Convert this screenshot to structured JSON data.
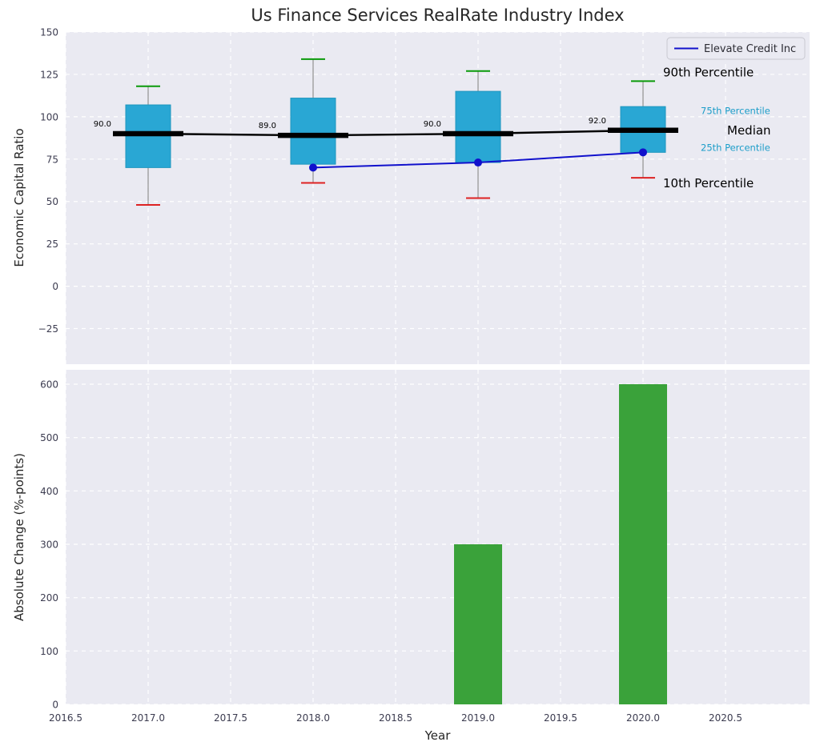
{
  "figure": {
    "title": "Us Finance Services RealRate Industry Index",
    "xlabel": "Year",
    "top_ylabel": "Economic Capital Ratio",
    "bottom_ylabel": "Absolute Change (%-points)"
  },
  "chart_data": [
    {
      "type": "boxplot",
      "title": "Us Finance Services RealRate Industry Index",
      "ylabel": "Economic Capital Ratio",
      "ylim": [
        -46,
        150
      ],
      "grid": true,
      "legend": {
        "label": "Elevate Credit Inc",
        "position": "upper right"
      },
      "yticks": [
        {
          "value": 150,
          "label": "150"
        },
        {
          "value": 125,
          "label": "125"
        },
        {
          "value": 100,
          "label": "100"
        },
        {
          "value": 75,
          "label": "75"
        },
        {
          "value": 50,
          "label": "50"
        },
        {
          "value": 25,
          "label": "25"
        },
        {
          "value": 0,
          "label": "0"
        },
        {
          "value": -25,
          "label": "−25"
        }
      ],
      "boxes": [
        {
          "x": 2017,
          "whisker_low": 48,
          "q1": 70,
          "median": 90.0,
          "q3": 107,
          "whisker_high": 118
        },
        {
          "x": 2018,
          "whisker_low": 61,
          "q1": 72,
          "median": 89.0,
          "q3": 111,
          "whisker_high": 134
        },
        {
          "x": 2019,
          "whisker_low": 52,
          "q1": 73,
          "median": 90.0,
          "q3": 115,
          "whisker_high": 127
        },
        {
          "x": 2020,
          "whisker_low": 64,
          "q1": 79,
          "median": 92.0,
          "q3": 106,
          "whisker_high": 121
        }
      ],
      "median_labels": [
        "90.0",
        "89.0",
        "90.0",
        "92.0"
      ],
      "series": [
        {
          "name": "Elevate Credit Inc",
          "x": [
            2018,
            2019,
            2020
          ],
          "y": [
            70,
            73,
            79
          ],
          "color": "#1111cc",
          "marker": "circle"
        }
      ],
      "percentile_annotations": [
        {
          "text": "90th Percentile",
          "color": "#000000",
          "anchor_value": 121,
          "size": "large"
        },
        {
          "text": "75th Percentile",
          "color": "#1c9dc9",
          "anchor_value": 105,
          "size": "small"
        },
        {
          "text": "Median",
          "color": "#000000",
          "anchor_value": 92,
          "size": "large"
        },
        {
          "text": "25th Percentile",
          "color": "#1c9dc9",
          "anchor_value": 79,
          "size": "small"
        },
        {
          "text": "10th Percentile",
          "color": "#000000",
          "anchor_value": 64,
          "size": "large"
        }
      ],
      "box_color": "#29a7d4",
      "box_edge_color": "#1e96be",
      "whisker_color": "#909090",
      "cap_high_color": "#0a9a0a",
      "cap_low_color": "#dd2222",
      "median_line_color": "#000000"
    },
    {
      "type": "bar",
      "ylabel": "Absolute Change (%-points)",
      "xlabel": "Year",
      "ylim": [
        0,
        627
      ],
      "grid": true,
      "yticks": [
        {
          "value": 0,
          "label": "0"
        },
        {
          "value": 100,
          "label": "100"
        },
        {
          "value": 200,
          "label": "200"
        },
        {
          "value": 300,
          "label": "300"
        },
        {
          "value": 400,
          "label": "400"
        },
        {
          "value": 500,
          "label": "500"
        },
        {
          "value": 600,
          "label": "600"
        }
      ],
      "xticks": [
        {
          "value": 2016.5,
          "label": "2016.5"
        },
        {
          "value": 2017.0,
          "label": "2017.0"
        },
        {
          "value": 2017.5,
          "label": "2017.5"
        },
        {
          "value": 2018.0,
          "label": "2018.0"
        },
        {
          "value": 2018.5,
          "label": "2018.5"
        },
        {
          "value": 2019.0,
          "label": "2019.0"
        },
        {
          "value": 2019.5,
          "label": "2019.5"
        },
        {
          "value": 2020.0,
          "label": "2020.0"
        },
        {
          "value": 2020.5,
          "label": "2020.5"
        }
      ],
      "categories": [
        2019,
        2020
      ],
      "values": [
        300,
        600
      ],
      "bar_color": "#3aa23a"
    }
  ],
  "colors": {
    "plot_bg": "#eaeaf2",
    "grid": "#ffffff",
    "tick_label": "#3c3c50",
    "text": "#262626"
  }
}
